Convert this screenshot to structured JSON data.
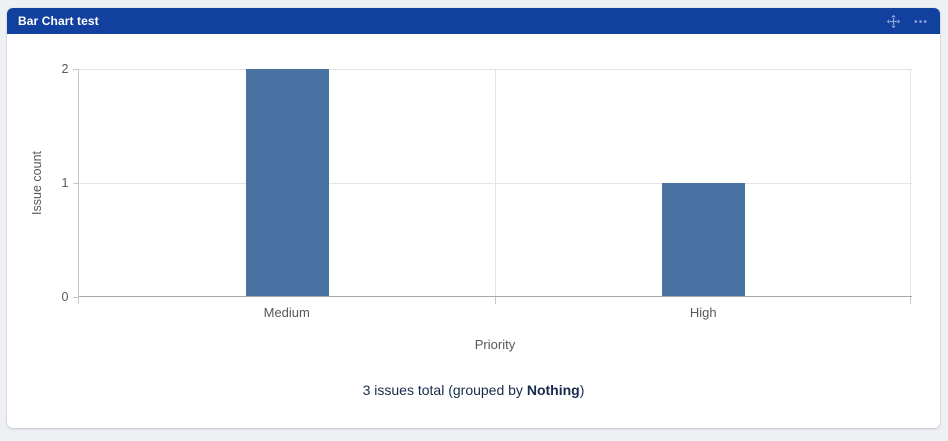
{
  "theme": {
    "page_bg": "#eef0f3",
    "panel_bg": "#ffffff",
    "header_bg": "#12409E",
    "header_text": "#ffffff",
    "icon_color": "#92a7d9",
    "bar_color": "#4872A1",
    "grid_color": "#e4e4e4",
    "axis_y": "#c7c7c7",
    "axis_x": "#a8a8a8",
    "chart_text": "#55585c",
    "footer_text": "#172B4D"
  },
  "gadget": {
    "title": "Bar Chart test",
    "icons": {
      "move": "move-icon",
      "more": "more-options-icon"
    }
  },
  "chart_data": {
    "type": "bar",
    "title": "",
    "categories": [
      "Medium",
      "High"
    ],
    "values": [
      2,
      1
    ],
    "xlabel": "Priority",
    "ylabel": "Issue count",
    "ylim": [
      0,
      2
    ],
    "yticks": [
      0,
      1,
      2
    ],
    "bar_color": "#4872A1",
    "grid": true,
    "legend": false
  },
  "footer": {
    "text_prefix": "3 issues total (grouped by ",
    "group_by": "Nothing",
    "text_suffix": ")"
  }
}
